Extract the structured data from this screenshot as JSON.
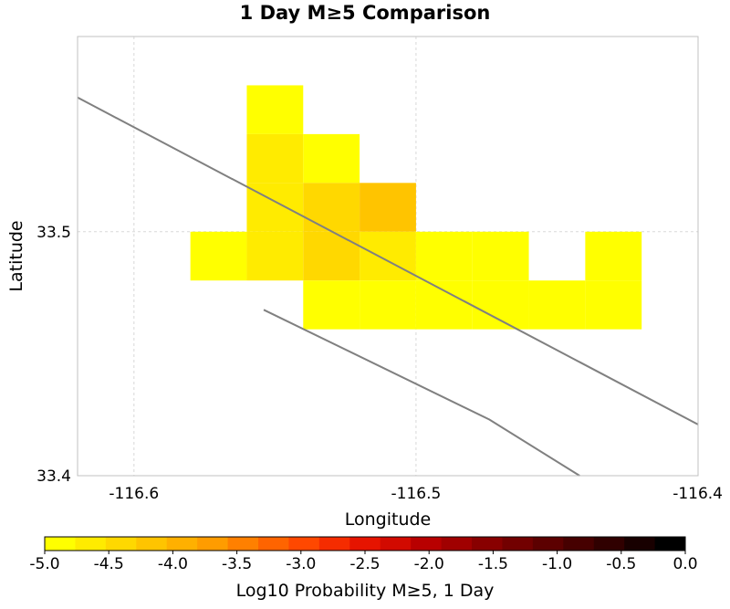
{
  "chart_data": {
    "type": "heatmap",
    "title": "1 Day M≥5 Comparison",
    "xlabel": "Longitude",
    "ylabel": "Latitude",
    "xlim": [
      -116.62,
      -116.4
    ],
    "ylim": [
      33.4,
      33.58
    ],
    "xticks": [
      {
        "value": -116.6,
        "label": "-116.6"
      },
      {
        "value": -116.5,
        "label": "-116.5"
      },
      {
        "value": -116.4,
        "label": "-116.4"
      }
    ],
    "yticks": [
      {
        "value": 33.4,
        "label": "33.4"
      },
      {
        "value": 33.5,
        "label": "33.5"
      }
    ],
    "grid": true,
    "cell_size_deg": 0.02,
    "cells": [
      {
        "lon": -116.55,
        "lat": 33.55,
        "value": -4.95
      },
      {
        "lon": -116.55,
        "lat": 33.53,
        "value": -4.7
      },
      {
        "lon": -116.53,
        "lat": 33.53,
        "value": -4.85
      },
      {
        "lon": -116.55,
        "lat": 33.51,
        "value": -4.7
      },
      {
        "lon": -116.53,
        "lat": 33.51,
        "value": -4.3
      },
      {
        "lon": -116.51,
        "lat": 33.51,
        "value": -4.05
      },
      {
        "lon": -116.57,
        "lat": 33.49,
        "value": -4.95
      },
      {
        "lon": -116.55,
        "lat": 33.49,
        "value": -4.7
      },
      {
        "lon": -116.53,
        "lat": 33.49,
        "value": -4.3
      },
      {
        "lon": -116.51,
        "lat": 33.49,
        "value": -4.6
      },
      {
        "lon": -116.49,
        "lat": 33.49,
        "value": -4.95
      },
      {
        "lon": -116.47,
        "lat": 33.49,
        "value": -4.95
      },
      {
        "lon": -116.43,
        "lat": 33.49,
        "value": -4.95
      },
      {
        "lon": -116.53,
        "lat": 33.47,
        "value": -4.95
      },
      {
        "lon": -116.51,
        "lat": 33.47,
        "value": -4.95
      },
      {
        "lon": -116.49,
        "lat": 33.47,
        "value": -4.95
      },
      {
        "lon": -116.47,
        "lat": 33.47,
        "value": -4.95
      },
      {
        "lon": -116.45,
        "lat": 33.47,
        "value": -4.95
      },
      {
        "lon": -116.43,
        "lat": 33.47,
        "value": -4.95
      }
    ],
    "fault_traces": [
      [
        [
          -116.62,
          33.555
        ],
        [
          -116.4,
          33.421
        ]
      ],
      [
        [
          -116.554,
          33.468
        ],
        [
          -116.474,
          33.423
        ],
        [
          -116.442,
          33.4
        ]
      ]
    ],
    "colorbar": {
      "label": "Log10 Probability M≥5, 1 Day",
      "range": [
        -5.0,
        0.0
      ],
      "tick_labels": [
        "-5.0",
        "-4.5",
        "-4.0",
        "-3.5",
        "-3.0",
        "-2.5",
        "-2.0",
        "-1.5",
        "-1.0",
        "-0.5",
        "0.0"
      ],
      "colors": [
        "#FFFF00",
        "#FFEB00",
        "#FFD800",
        "#FFC400",
        "#FFB000",
        "#FF9C00",
        "#FF8000",
        "#FF6400",
        "#FF4800",
        "#F52C00",
        "#E61400",
        "#D20A00",
        "#B80000",
        "#A00000",
        "#880000",
        "#720000",
        "#5C0000",
        "#460000",
        "#300000",
        "#180000",
        "#000000"
      ]
    },
    "colors": {
      "fault_line": "#808080",
      "grid_line": "#d8d8d8",
      "plot_border": "#c0c0c0"
    }
  }
}
